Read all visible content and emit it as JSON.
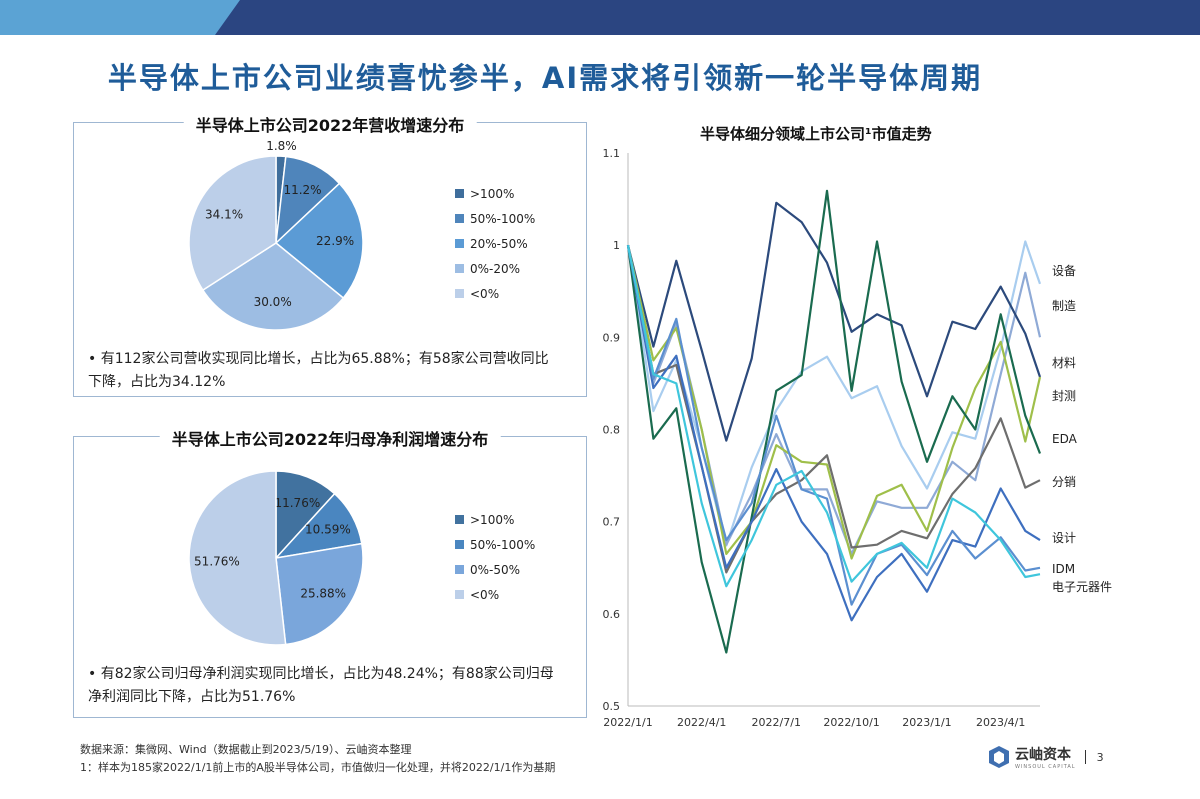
{
  "header": {
    "title": "半导体上市公司业绩喜忧参半，AI需求将引领新一轮半导体周期",
    "bar_colors": {
      "light": "#5ba3d4",
      "dark": "#2b4581"
    }
  },
  "revenue_panel": {
    "title": "半导体上市公司2022年营收增速分布",
    "bullet": "有112家公司营收实现同比增长，占比为65.88%；有58家公司营收同比下降，占比为34.12%"
  },
  "profit_panel": {
    "title": "半导体上市公司2022年归母净利润增速分布",
    "bullet": "有82家公司归母净利润实现同比增长，占比为48.24%；有88家公司归母净利润同比下降，占比为51.76%"
  },
  "chart_data": [
    {
      "type": "pie",
      "title": "半导体上市公司2022年营收增速分布",
      "legend_position": "right",
      "categories": [
        ">100%",
        "50%-100%",
        "20%-50%",
        "0%-20%",
        "<0%"
      ],
      "values": [
        1.8,
        11.2,
        22.9,
        30.0,
        34.1
      ],
      "labels": [
        "1.8%",
        "11.2%",
        "22.9%",
        "30.0%",
        "34.1%"
      ],
      "colors": [
        "#3f6e9c",
        "#4f85bb",
        "#5b9bd5",
        "#9dbde3",
        "#bccfe9"
      ]
    },
    {
      "type": "pie",
      "title": "半导体上市公司2022年归母净利润增速分布",
      "legend_position": "right",
      "categories": [
        ">100%",
        "50%-100%",
        "0%-50%",
        "<0%"
      ],
      "values": [
        11.76,
        10.59,
        25.88,
        51.76
      ],
      "labels": [
        "11.76%",
        "10.59%",
        "25.88%",
        "51.76%"
      ],
      "colors": [
        "#41729f",
        "#4a86c0",
        "#7aa6db",
        "#bccfe9"
      ]
    },
    {
      "type": "line",
      "title": "半导体细分领域上市公司¹市值走势",
      "ylim": [
        0.5,
        1.1
      ],
      "grid": false,
      "legend_position": "right (end labels)",
      "yticks": [
        "1.1",
        "1",
        "0.9",
        "0.8",
        "0.7",
        "0.6",
        "0.5"
      ],
      "xticks": [
        "2022/1/1",
        "2022/4/1",
        "2022/7/1",
        "2022/10/1",
        "2023/1/1",
        "2023/4/1"
      ],
      "x": [
        "2022/1/1",
        "2022/2/1",
        "2022/3/1",
        "2022/4/1",
        "2022/5/1",
        "2022/6/1",
        "2022/7/1",
        "2022/8/1",
        "2022/9/1",
        "2022/10/1",
        "2022/11/1",
        "2022/12/1",
        "2023/1/1",
        "2023/2/1",
        "2023/3/1",
        "2023/4/1",
        "2023/5/1",
        "2023/5/19"
      ],
      "series": [
        {
          "name": "设备",
          "color": "#a9cdef",
          "values": [
            1.0,
            0.82,
            0.875,
            0.78,
            0.674,
            0.759,
            0.821,
            0.863,
            0.879,
            0.834,
            0.847,
            0.782,
            0.736,
            0.797,
            0.79,
            0.888,
            1.004,
            0.958
          ]
        },
        {
          "name": "制造",
          "color": "#8faad6",
          "values": [
            1.0,
            0.85,
            0.915,
            0.8,
            0.675,
            0.73,
            0.795,
            0.735,
            0.735,
            0.665,
            0.722,
            0.715,
            0.715,
            0.765,
            0.745,
            0.86,
            0.97,
            0.9
          ]
        },
        {
          "name": "材料",
          "color": "#2c4a7c",
          "values": [
            1.0,
            0.89,
            0.983,
            0.886,
            0.788,
            0.877,
            1.046,
            1.025,
            0.981,
            0.906,
            0.925,
            0.913,
            0.836,
            0.917,
            0.909,
            0.955,
            0.904,
            0.857
          ]
        },
        {
          "name": "封测",
          "color": "#9fbf4a",
          "values": [
            1.0,
            0.875,
            0.91,
            0.8,
            0.665,
            0.7,
            0.783,
            0.765,
            0.762,
            0.66,
            0.728,
            0.74,
            0.69,
            0.78,
            0.845,
            0.895,
            0.787,
            0.857
          ]
        },
        {
          "name": "EDA",
          "color": "#1a6b4f",
          "values": [
            1.0,
            0.79,
            0.823,
            0.656,
            0.558,
            0.705,
            0.842,
            0.859,
            1.059,
            0.842,
            1.004,
            0.852,
            0.765,
            0.836,
            0.8,
            0.925,
            0.815,
            0.774
          ]
        },
        {
          "name": "分销",
          "color": "#6e6e6e",
          "values": [
            1.0,
            0.86,
            0.87,
            0.76,
            0.645,
            0.7,
            0.73,
            0.745,
            0.772,
            0.672,
            0.675,
            0.69,
            0.682,
            0.73,
            0.758,
            0.812,
            0.737,
            0.745
          ]
        },
        {
          "name": "设计",
          "color": "#3e6fbf",
          "values": [
            1.0,
            0.845,
            0.88,
            0.76,
            0.65,
            0.7,
            0.757,
            0.7,
            0.665,
            0.593,
            0.64,
            0.665,
            0.624,
            0.68,
            0.673,
            0.736,
            0.69,
            0.68
          ]
        },
        {
          "name": "IDM",
          "color": "#5b8fd0",
          "values": [
            1.0,
            0.855,
            0.92,
            0.78,
            0.68,
            0.72,
            0.815,
            0.735,
            0.725,
            0.61,
            0.665,
            0.675,
            0.642,
            0.69,
            0.66,
            0.683,
            0.647,
            0.65
          ]
        },
        {
          "name": "电子元器件",
          "color": "#3fc6dc",
          "values": [
            1.0,
            0.86,
            0.85,
            0.72,
            0.63,
            0.68,
            0.74,
            0.755,
            0.71,
            0.635,
            0.665,
            0.677,
            0.65,
            0.725,
            0.71,
            0.68,
            0.64,
            0.643
          ]
        }
      ]
    }
  ],
  "footer": {
    "source": "数据来源：集微网、Wind（数据截止到2023/5/19）、云岫资本整理",
    "note": "1：样本为185家2022/1/1前上市的A股半导体公司，市值做归一化处理，并将2022/1/1作为基期",
    "logo_text": "云岫资本",
    "logo_sub": "WINSOUL CAPITAL",
    "page": "3"
  }
}
